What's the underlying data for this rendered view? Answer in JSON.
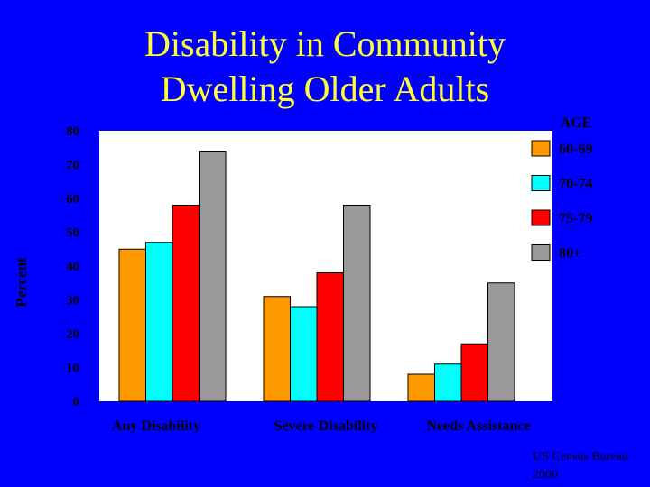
{
  "title_lines": [
    "Disability in Community",
    "Dwelling Older Adults"
  ],
  "source_lines": [
    "US Census Bureau",
    "2000"
  ],
  "colors": {
    "background": "#0000ff",
    "title": "#ffff33",
    "plot_area": "#ffffff",
    "series": [
      "#ff9900",
      "#00ffff",
      "#ff0000",
      "#999999"
    ]
  },
  "chart_data": {
    "type": "bar",
    "title": "",
    "xlabel": "",
    "ylabel": "Percent",
    "ylim": [
      0,
      80
    ],
    "yticks": [
      0,
      10,
      20,
      30,
      40,
      50,
      60,
      70,
      80
    ],
    "grid": false,
    "legend_position": "top-right",
    "legend_title": "AGE",
    "categories": [
      "Any Disability",
      "Severe Disability",
      "Needs Assistance"
    ],
    "series": [
      {
        "name": "60-69",
        "values": [
          45,
          31,
          8
        ]
      },
      {
        "name": "70-74",
        "values": [
          47,
          28,
          11
        ]
      },
      {
        "name": "75-79",
        "values": [
          58,
          38,
          17
        ]
      },
      {
        "name": "80+",
        "values": [
          74,
          58,
          35
        ]
      }
    ]
  }
}
